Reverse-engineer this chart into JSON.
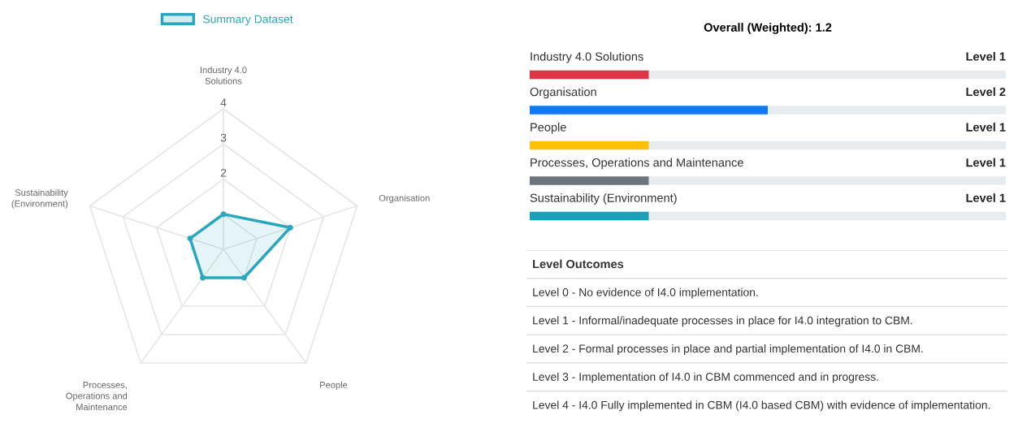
{
  "chart_data": [
    {
      "type": "radar",
      "categories": [
        "Industry 4.0\nSolutions",
        "Organisation",
        "People",
        "Processes,\nOperations and\nMaintenance",
        "Sustainability\n(Environment)"
      ],
      "series": [
        {
          "name": "Summary Dataset",
          "color": "#2aa7bd",
          "values": [
            1,
            2,
            1,
            1,
            1
          ]
        }
      ],
      "ylim": [
        0,
        4
      ],
      "yticks": [
        2,
        3,
        4
      ],
      "grid": true,
      "legend": "top",
      "marker": "circle"
    },
    {
      "type": "bar",
      "orientation": "horizontal",
      "title": "Overall (Weighted): 1.2",
      "categories": [
        "Industry 4.0 Solutions",
        "Organisation",
        "People",
        "Processes, Operations and Maintenance",
        "Sustainability (Environment)"
      ],
      "values": [
        1,
        2,
        1,
        1,
        1
      ],
      "colors": [
        "#dc3545",
        "#0d7bf5",
        "#ffc107",
        "#6c757d",
        "#17a2b8"
      ],
      "xlim": [
        0,
        4
      ],
      "value_labels": [
        "Level 1",
        "Level 2",
        "Level 1",
        "Level 1",
        "Level 1"
      ],
      "tick_labels": "y"
    },
    {
      "type": "other",
      "title": "Level Outcomes",
      "annotations": [
        "Level 0 - No evidence of I4.0 implementation.",
        "Level 1 - Informal/inadequate processes in place for I4.0 integration to CBM.",
        "Level 2 - Formal processes in place and partial implementation of I4.0 in CBM.",
        "Level 3 - Implementation of I4.0 in CBM commenced and in progress.",
        "Level 4 - I4.0 Fully implemented in CBM (I4.0 based CBM) with evidence of implementation."
      ]
    }
  ]
}
